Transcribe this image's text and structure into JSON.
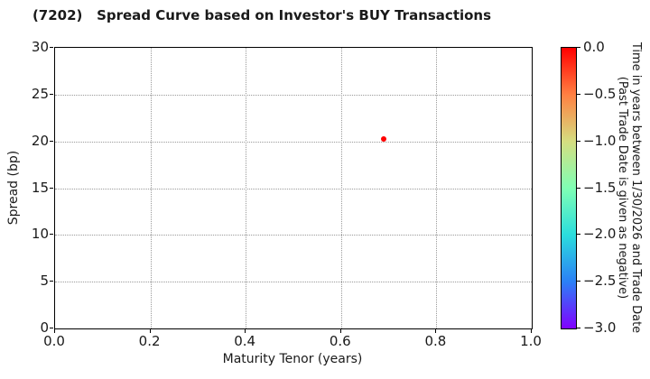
{
  "title": "(7202)   Spread Curve based on Investor's BUY Transactions",
  "colors": {
    "point": "#ff0000",
    "grid": "#9a9a9a",
    "axis": "#000000",
    "text": "#1a1a1a",
    "background": "#ffffff"
  },
  "chart_data": {
    "type": "scatter",
    "title": "(7202)   Spread Curve based on Investor's BUY Transactions",
    "xlabel": "Maturity Tenor (years)",
    "ylabel": "Spread (bp)",
    "xlim": [
      0.0,
      1.0
    ],
    "ylim": [
      0,
      30
    ],
    "grid": true,
    "grid_style": "dotted",
    "x_ticks": [
      {
        "label": "0.0",
        "value": 0.0
      },
      {
        "label": "0.2",
        "value": 0.2
      },
      {
        "label": "0.4",
        "value": 0.4
      },
      {
        "label": "0.6",
        "value": 0.6
      },
      {
        "label": "0.8",
        "value": 0.8
      },
      {
        "label": "1.0",
        "value": 1.0
      }
    ],
    "y_ticks": [
      {
        "label": "0",
        "value": 0
      },
      {
        "label": "5",
        "value": 5
      },
      {
        "label": "10",
        "value": 10
      },
      {
        "label": "15",
        "value": 15
      },
      {
        "label": "20",
        "value": 20
      },
      {
        "label": "25",
        "value": 25
      },
      {
        "label": "30",
        "value": 30
      }
    ],
    "points": [
      {
        "x": 0.69,
        "y": 20.3,
        "color_value": 0.0,
        "color": "#ff0000"
      }
    ],
    "colorbar": {
      "label_line1": "Time in years between 1/30/2026 and Trade Date",
      "label_line2": "(Past Trade Date is given as negative)",
      "range": [
        -3.0,
        0.0
      ],
      "ticks": [
        {
          "label": "0.0",
          "value": 0.0
        },
        {
          "label": "−0.5",
          "value": -0.5
        },
        {
          "label": "−1.0",
          "value": -1.0
        },
        {
          "label": "−1.5",
          "value": -1.5
        },
        {
          "label": "−2.0",
          "value": -2.0
        },
        {
          "label": "−2.5",
          "value": -2.5
        },
        {
          "label": "−3.0",
          "value": -3.0
        }
      ],
      "colormap_top_to_bottom": [
        {
          "pos": 0.0,
          "color": "#ff0000"
        },
        {
          "pos": 0.1667,
          "color": "#ff8042"
        },
        {
          "pos": 0.3333,
          "color": "#d5dd80"
        },
        {
          "pos": 0.5,
          "color": "#80ffb4"
        },
        {
          "pos": 0.6667,
          "color": "#2bdddd"
        },
        {
          "pos": 0.8333,
          "color": "#2b80f6"
        },
        {
          "pos": 1.0,
          "color": "#8000ff"
        }
      ]
    }
  }
}
